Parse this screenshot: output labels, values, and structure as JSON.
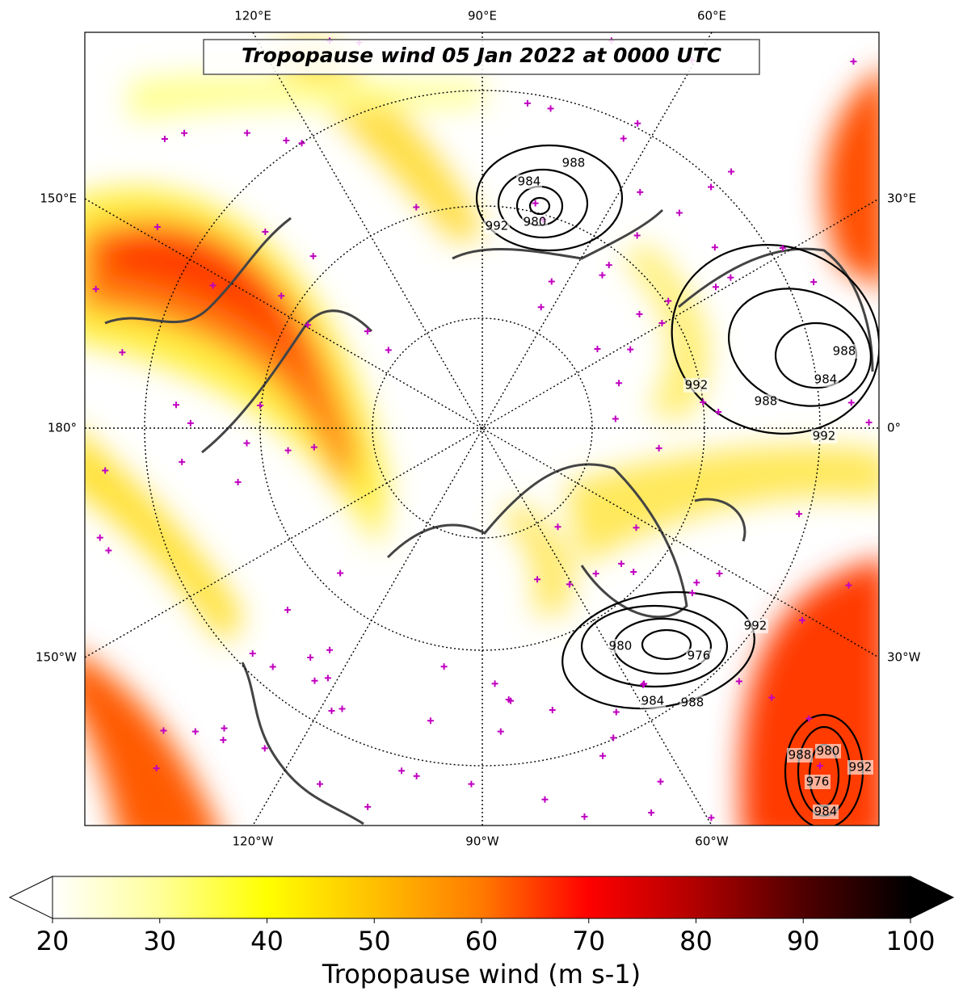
{
  "title": "Tropopause wind 05 Jan 2022 at 0000 UTC",
  "map": {
    "lon_labels": [
      "120°E",
      "90°E",
      "60°E",
      "150°E",
      "180°",
      "150°W",
      "30°E",
      "0°",
      "30°W",
      "120°W",
      "90°W",
      "60°W"
    ],
    "contour_labels": [
      988,
      984,
      992,
      980,
      992,
      988,
      992,
      984,
      988,
      980,
      976,
      984,
      988,
      992,
      988,
      980,
      992,
      976,
      984
    ]
  },
  "colorbar": {
    "lim": [
      20,
      100
    ],
    "ticks": [
      20,
      30,
      40,
      50,
      60,
      70,
      80,
      90,
      100
    ],
    "colors": [
      "#ffffff",
      "#ffff9a",
      "#ffff00",
      "#ffc000",
      "#ff7a00",
      "#ff0000",
      "#b00000",
      "#500000",
      "#000000"
    ],
    "label": "Tropopause wind (m s-1)"
  }
}
